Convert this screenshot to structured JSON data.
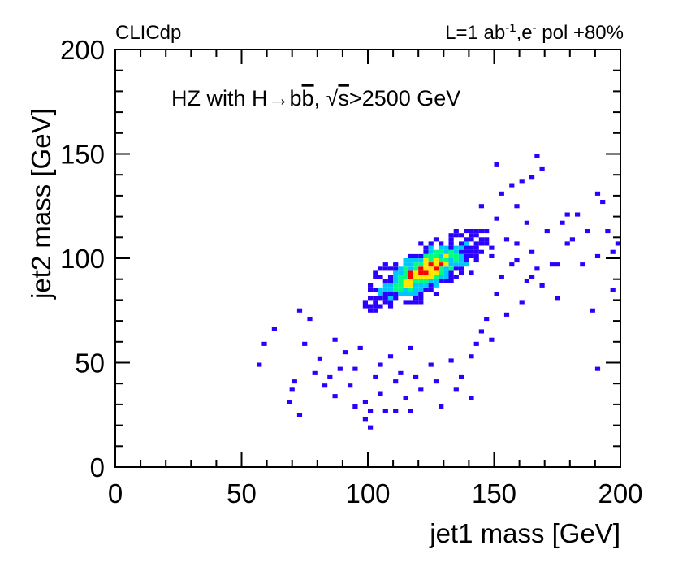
{
  "header": {
    "experiment": "CLICdp",
    "luminosity_prefix": "L=1 ab",
    "luminosity_exp": "-1",
    "beam_prefix": ",e",
    "beam_exp": "-",
    "polarization": " pol +80%"
  },
  "annotation": {
    "process_prefix": "HZ with H",
    "arrow": "→",
    "bb_first": "b",
    "bb_second": "b",
    "sqrt_symbol": "√",
    "sqrt_var": "s",
    "cut": ">2500 GeV"
  },
  "colors": {
    "low": "#2a00ff",
    "mid_low": "#00c8ff",
    "mid": "#00ff80",
    "mid_high": "#ffe600",
    "high": "#ff0000"
  },
  "chart_data": {
    "type": "heatmap",
    "title": "HZ with H→bb̄, √s>2500 GeV",
    "xlabel": "jet1 mass [GeV]",
    "ylabel": "jet2 mass [GeV]",
    "xlim": [
      0,
      200
    ],
    "ylim": [
      0,
      200
    ],
    "bin_width": 2,
    "x_ticks": [
      0,
      50,
      100,
      150,
      200
    ],
    "y_ticks": [
      0,
      50,
      100,
      150,
      200
    ],
    "x_tick_labels": [
      "0",
      "50",
      "100",
      "150",
      "200"
    ],
    "y_tick_labels": [
      "0",
      "50",
      "100",
      "150",
      "200"
    ],
    "core": {
      "center": [
        122,
        93
      ],
      "spread_x": 12,
      "spread_y": 9,
      "correlation": 0.7,
      "peak_level": 5
    },
    "sparse_points": [
      [
        57,
        49
      ],
      [
        59,
        59
      ],
      [
        63,
        66
      ],
      [
        69,
        31
      ],
      [
        70,
        37
      ],
      [
        71,
        41
      ],
      [
        73,
        25
      ],
      [
        73,
        75
      ],
      [
        75,
        59
      ],
      [
        77,
        71
      ],
      [
        79,
        45
      ],
      [
        81,
        52
      ],
      [
        83,
        39
      ],
      [
        85,
        43
      ],
      [
        87,
        61
      ],
      [
        87,
        34
      ],
      [
        89,
        47
      ],
      [
        91,
        55
      ],
      [
        93,
        39
      ],
      [
        95,
        29
      ],
      [
        95,
        47
      ],
      [
        97,
        57
      ],
      [
        99,
        23
      ],
      [
        99,
        31
      ],
      [
        101,
        19
      ],
      [
        101,
        27
      ],
      [
        103,
        43
      ],
      [
        105,
        35
      ],
      [
        105,
        49
      ],
      [
        107,
        27
      ],
      [
        109,
        53
      ],
      [
        111,
        41
      ],
      [
        111,
        27
      ],
      [
        113,
        45
      ],
      [
        115,
        33
      ],
      [
        117,
        57
      ],
      [
        117,
        27
      ],
      [
        119,
        43
      ],
      [
        121,
        37
      ],
      [
        125,
        49
      ],
      [
        127,
        41
      ],
      [
        129,
        29
      ],
      [
        133,
        51
      ],
      [
        135,
        37
      ],
      [
        137,
        43
      ],
      [
        141,
        33
      ],
      [
        141,
        53
      ],
      [
        143,
        59
      ],
      [
        145,
        65
      ],
      [
        147,
        71
      ],
      [
        149,
        61
      ],
      [
        151,
        83
      ],
      [
        153,
        91
      ],
      [
        155,
        73
      ],
      [
        157,
        97
      ],
      [
        159,
        107
      ],
      [
        161,
        79
      ],
      [
        163,
        89
      ],
      [
        165,
        103
      ],
      [
        167,
        95
      ],
      [
        169,
        87
      ],
      [
        171,
        113
      ],
      [
        173,
        97
      ],
      [
        175,
        81
      ],
      [
        177,
        117
      ],
      [
        179,
        107
      ],
      [
        181,
        109
      ],
      [
        183,
        121
      ],
      [
        185,
        97
      ],
      [
        187,
        113
      ],
      [
        189,
        75
      ],
      [
        191,
        131
      ],
      [
        191,
        101
      ],
      [
        193,
        127
      ],
      [
        195,
        113
      ],
      [
        197,
        85
      ],
      [
        197,
        103
      ],
      [
        199,
        107
      ],
      [
        191,
        47
      ],
      [
        167,
        149
      ],
      [
        169,
        143
      ],
      [
        165,
        139
      ],
      [
        161,
        137
      ],
      [
        151,
        145
      ],
      [
        153,
        131
      ],
      [
        157,
        135
      ],
      [
        159,
        125
      ],
      [
        163,
        117
      ],
      [
        159,
        99
      ],
      [
        165,
        91
      ],
      [
        151,
        119
      ],
      [
        145,
        125
      ],
      [
        149,
        101
      ],
      [
        147,
        113
      ],
      [
        155,
        109
      ],
      [
        175,
        97
      ],
      [
        179,
        121
      ]
    ]
  }
}
